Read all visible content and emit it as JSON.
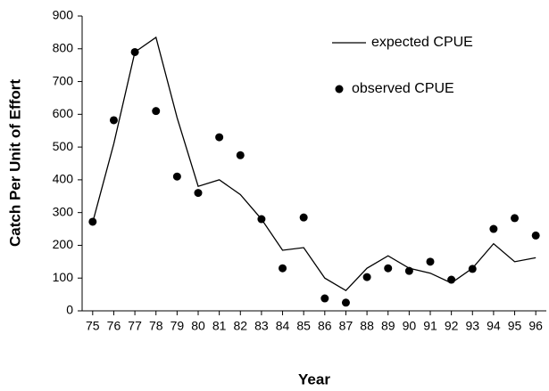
{
  "chart_data": {
    "type": "line",
    "x_label": "Year",
    "y_label": "Catch Per Unit of Effort",
    "x": [
      75,
      76,
      77,
      78,
      79,
      80,
      81,
      82,
      83,
      84,
      85,
      86,
      87,
      88,
      89,
      90,
      91,
      92,
      93,
      94,
      95,
      96
    ],
    "series": [
      {
        "name": "expected CPUE",
        "type": "line",
        "color": "#000000",
        "values": [
          270,
          510,
          790,
          835,
          590,
          380,
          400,
          355,
          280,
          185,
          193,
          100,
          62,
          130,
          168,
          130,
          115,
          85,
          130,
          205,
          150,
          162
        ]
      },
      {
        "name": "observed CPUE",
        "type": "scatter",
        "color": "#000000",
        "values": [
          272,
          582,
          790,
          610,
          410,
          360,
          530,
          475,
          280,
          130,
          285,
          38,
          25,
          103,
          130,
          122,
          150,
          95,
          128,
          250,
          283,
          230
        ]
      }
    ],
    "xlim": [
      74.5,
      96.5
    ],
    "xticks": [
      75,
      76,
      77,
      78,
      79,
      80,
      81,
      82,
      83,
      84,
      85,
      86,
      87,
      88,
      89,
      90,
      91,
      92,
      93,
      94,
      95,
      96
    ],
    "ylim": [
      0,
      900
    ],
    "yticks": [
      0,
      100,
      200,
      300,
      400,
      500,
      600,
      700,
      800,
      900
    ],
    "grid": false,
    "legend": "upper right"
  }
}
